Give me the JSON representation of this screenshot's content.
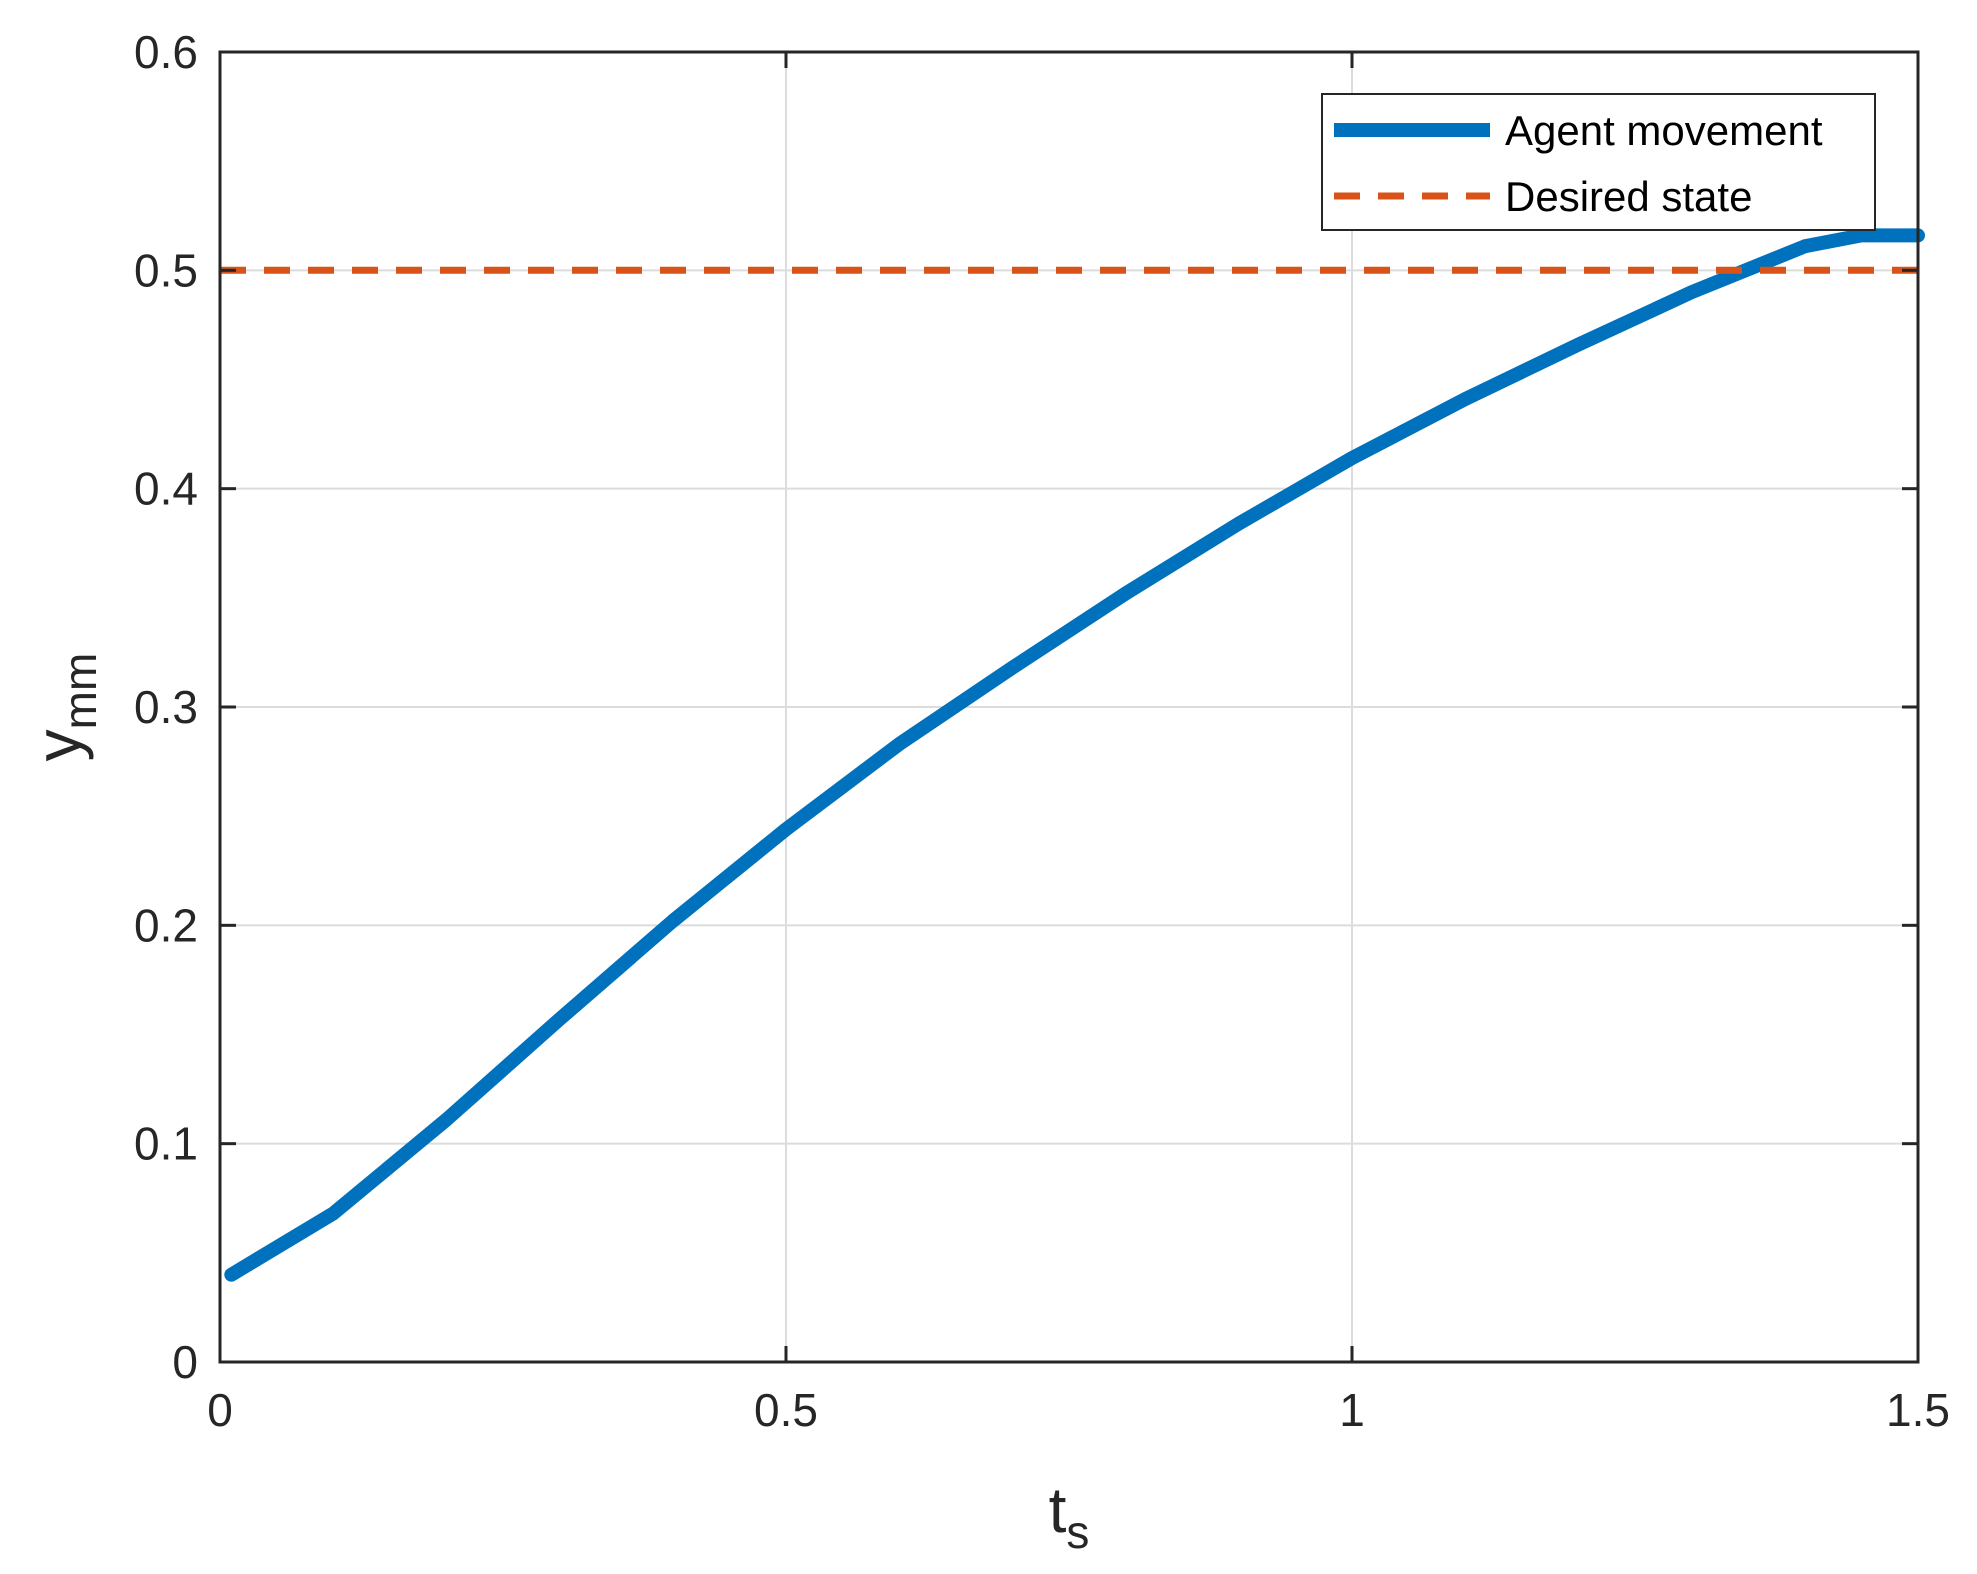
{
  "chart_data": {
    "type": "line",
    "title": "",
    "xlabel": {
      "main": "t",
      "sub": "s"
    },
    "ylabel": {
      "main": "y",
      "sub": "mm"
    },
    "xlim": [
      0,
      1.5
    ],
    "ylim": [
      0,
      0.6
    ],
    "x_ticks": [
      0,
      0.5,
      1,
      1.5
    ],
    "x_tick_labels": [
      "0",
      "0.5",
      "1",
      "1.5"
    ],
    "y_ticks": [
      0,
      0.1,
      0.2,
      0.3,
      0.4,
      0.5,
      0.6
    ],
    "y_tick_labels": [
      "0",
      "0.1",
      "0.2",
      "0.3",
      "0.4",
      "0.5",
      "0.6"
    ],
    "grid": true,
    "legend_position": "top-right",
    "series": [
      {
        "name": "Agent movement",
        "color": "#0072BD",
        "style": "solid",
        "x": [
          0.01,
          0.1,
          0.2,
          0.3,
          0.4,
          0.5,
          0.6,
          0.7,
          0.8,
          0.9,
          1.0,
          1.1,
          1.2,
          1.3,
          1.4,
          1.45,
          1.5
        ],
        "y": [
          0.04,
          0.068,
          0.111,
          0.157,
          0.202,
          0.244,
          0.283,
          0.318,
          0.352,
          0.384,
          0.414,
          0.441,
          0.466,
          0.49,
          0.511,
          0.516,
          0.516
        ]
      },
      {
        "name": "Desired state",
        "color": "#D95319",
        "style": "dashed",
        "x": [
          0,
          1.5
        ],
        "y": [
          0.5,
          0.5
        ]
      }
    ]
  }
}
